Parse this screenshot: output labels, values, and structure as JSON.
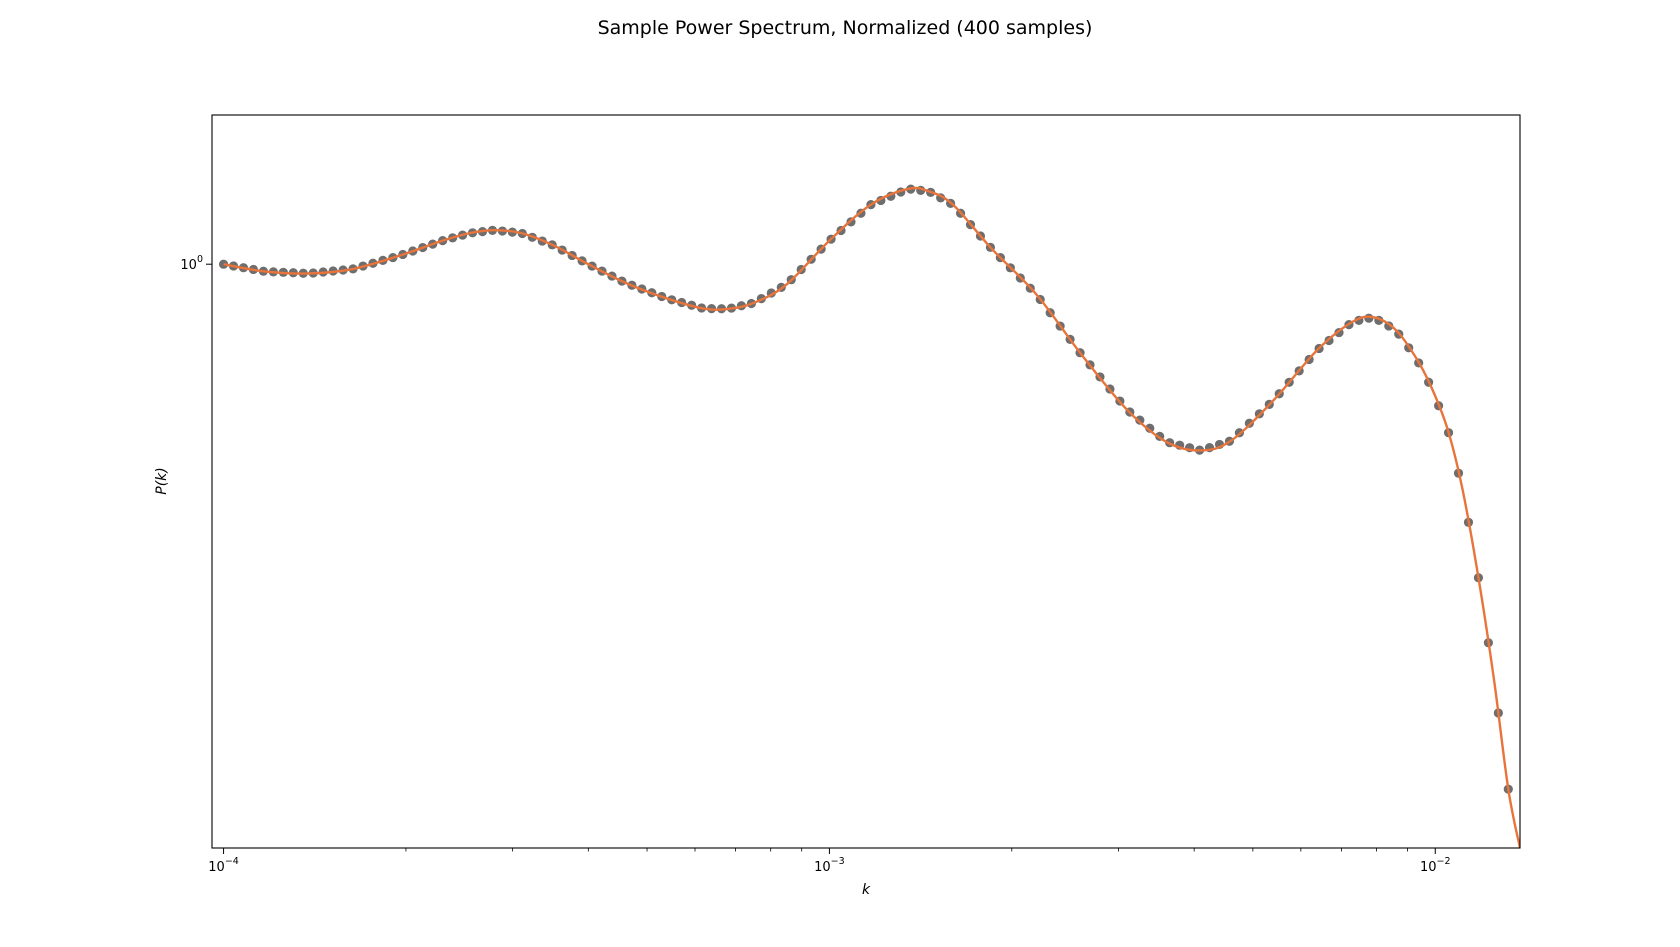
{
  "chart_data": {
    "type": "line",
    "title": "Sample Power Spectrum, Normalized (400 samples)",
    "xlabel": "k",
    "ylabel": "P(k)",
    "xscale": "log",
    "yscale": "log",
    "xlim": [
      9.57e-05,
      0.0138
    ],
    "ylim": [
      0.167,
      1.58
    ],
    "grid": false,
    "xticks": [
      {
        "value": 0.0001,
        "base": "10",
        "exp": "−4"
      },
      {
        "value": 0.001,
        "base": "10",
        "exp": "−3"
      },
      {
        "value": 0.01,
        "base": "10",
        "exp": "−2"
      }
    ],
    "yticks": [
      {
        "value": 1.0,
        "base": "10",
        "exp": "0"
      }
    ],
    "series": [
      {
        "style": "markers",
        "color": "#6e6e6e",
        "marker_count": 130,
        "x_range": [
          0.0001,
          0.0132
        ],
        "x": [
          0.0001,
          0.000117,
          0.000138,
          0.000163,
          0.000194,
          0.00023,
          0.000255,
          0.00028,
          0.00031,
          0.00035,
          0.0004,
          0.00046,
          0.00054,
          0.00062,
          0.00068,
          0.00075,
          0.00085,
          0.001,
          0.00117,
          0.00135,
          0.00146,
          0.0016,
          0.00185,
          0.0022,
          0.0026,
          0.0031,
          0.0036,
          0.0041,
          0.0046,
          0.0054,
          0.0064,
          0.0073,
          0.0079,
          0.0086,
          0.0093,
          0.0099,
          0.0105,
          0.0111,
          0.0118,
          0.0125,
          0.0132
        ],
        "y": [
          1.0,
          0.978,
          0.972,
          0.985,
          1.025,
          1.075,
          1.1,
          1.11,
          1.1,
          1.06,
          1.0,
          0.945,
          0.9,
          0.873,
          0.872,
          0.888,
          0.94,
          1.075,
          1.2,
          1.26,
          1.25,
          1.2,
          1.05,
          0.91,
          0.76,
          0.64,
          0.58,
          0.565,
          0.582,
          0.658,
          0.77,
          0.838,
          0.85,
          0.818,
          0.75,
          0.68,
          0.6,
          0.5,
          0.38,
          0.28,
          0.2
        ]
      },
      {
        "style": "line",
        "color": "#e8743b",
        "x": [
          0.0001,
          0.000117,
          0.000138,
          0.000163,
          0.000194,
          0.00023,
          0.000255,
          0.00028,
          0.00031,
          0.00035,
          0.0004,
          0.00046,
          0.00054,
          0.00062,
          0.00068,
          0.00075,
          0.00085,
          0.001,
          0.00117,
          0.00135,
          0.00146,
          0.0016,
          0.00185,
          0.0022,
          0.0026,
          0.0031,
          0.0036,
          0.0041,
          0.0046,
          0.0054,
          0.0064,
          0.0073,
          0.0079,
          0.0086,
          0.0093,
          0.0099,
          0.0105,
          0.0111,
          0.0118,
          0.0125,
          0.0132,
          0.0138
        ],
        "y": [
          1.0,
          0.978,
          0.972,
          0.985,
          1.025,
          1.075,
          1.1,
          1.11,
          1.1,
          1.06,
          1.0,
          0.945,
          0.9,
          0.873,
          0.872,
          0.888,
          0.94,
          1.075,
          1.2,
          1.26,
          1.25,
          1.2,
          1.05,
          0.91,
          0.76,
          0.64,
          0.58,
          0.565,
          0.582,
          0.658,
          0.77,
          0.838,
          0.85,
          0.818,
          0.75,
          0.68,
          0.6,
          0.5,
          0.38,
          0.28,
          0.2,
          0.167
        ]
      }
    ]
  }
}
